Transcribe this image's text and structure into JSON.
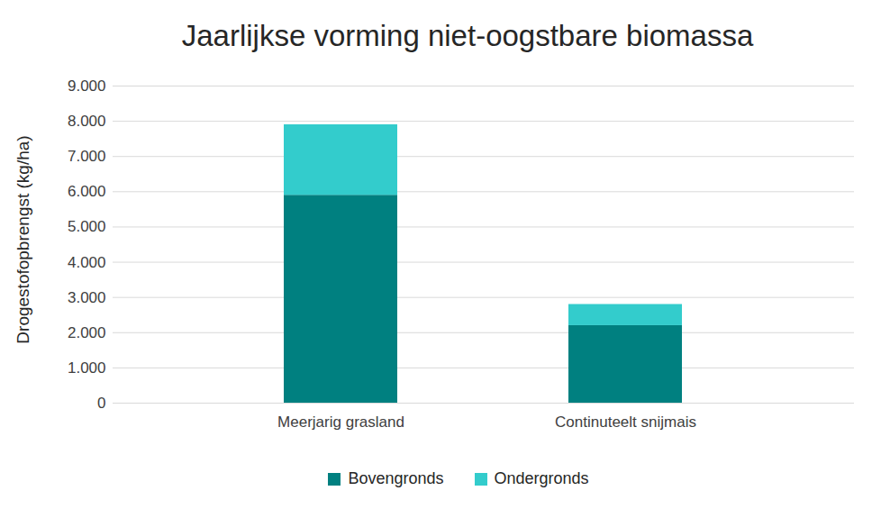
{
  "chart_data": {
    "type": "bar",
    "stacked": true,
    "grid": true,
    "legend": "bottom",
    "title": "Jaarlijkse vorming niet-oogstbare biomassa",
    "y_label": "Drogestofopbrengst (kg/ha)",
    "categories": [
      "Meerjarig grasland",
      "Continuteelt snijmais"
    ],
    "series": [
      {
        "name": "Bovengronds",
        "color": "#008080",
        "values": [
          5900,
          2200
        ]
      },
      {
        "name": "Ondergronds",
        "color": "#33CCCC",
        "values": [
          2000,
          600
        ]
      }
    ],
    "ylim": [
      0,
      9000
    ],
    "yticks": [
      0,
      {
        "value": 1000,
        "label": "1.000"
      },
      {
        "value": 2000,
        "label": "2.000"
      },
      {
        "value": 3000,
        "label": "3.000"
      },
      {
        "value": 4000,
        "label": "4.000"
      },
      {
        "value": 5000,
        "label": "5.000"
      },
      {
        "value": 6000,
        "label": "6.000"
      },
      {
        "value": 7000,
        "label": "7.000"
      },
      {
        "value": 8000,
        "label": "8.000"
      },
      {
        "value": 9000,
        "label": "9.000"
      }
    ]
  }
}
